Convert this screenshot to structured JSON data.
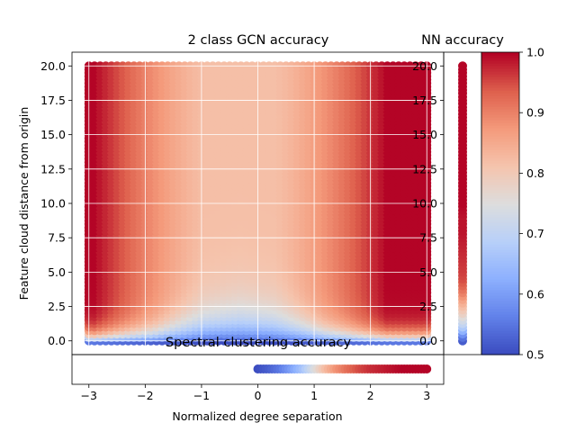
{
  "figure": {
    "main_title": "2 class GCN accuracy",
    "nn_title": "NN accuracy",
    "spectral_title": "Spectral clustering accuracy",
    "xlabel": "Normalized degree separation",
    "ylabel": "Feature cloud distance from origin"
  },
  "chart_data": [
    {
      "type": "scatter",
      "title": "2 class GCN accuracy",
      "xlabel": "Normalized degree separation",
      "ylabel": "Feature cloud distance from origin",
      "xlim": [
        -3.3,
        3.3
      ],
      "ylim": [
        -1.0,
        21.0
      ],
      "x_ticks": [
        -3,
        -2,
        -1,
        0,
        1,
        2,
        3
      ],
      "x_tick_labels": [
        "−3",
        "−2",
        "−1",
        "0",
        "1",
        "2",
        "3"
      ],
      "y_ticks": [
        0.0,
        2.5,
        5.0,
        7.5,
        10.0,
        12.5,
        15.0,
        17.5,
        20.0
      ],
      "y_tick_labels": [
        "0.0",
        "2.5",
        "5.0",
        "7.5",
        "10.0",
        "12.5",
        "15.0",
        "17.5",
        "20.0"
      ],
      "grid": true,
      "x_range": [
        -3,
        3
      ],
      "y_range": [
        0,
        20
      ],
      "accuracy_model": {
        "edge_accuracy": 1.0,
        "center_accuracy_high_y": 0.82,
        "center_position": -0.3,
        "low_y_accuracy": 0.5
      },
      "colormap": "coolwarm"
    },
    {
      "type": "scatter",
      "title": "NN accuracy",
      "y_range": [
        0,
        20
      ],
      "ylim": [
        -1.0,
        21.0
      ],
      "y_ticks": [
        0.0,
        2.5,
        5.0,
        7.5,
        10.0,
        12.5,
        15.0,
        17.5,
        20.0
      ],
      "y_tick_labels": [
        "0.0",
        "2.5",
        "5.0",
        "7.5",
        "10.0",
        "12.5",
        "15.0",
        "17.5",
        "20.0"
      ],
      "y_samples": [
        0.0,
        0.3,
        0.6,
        0.9,
        1.2,
        1.6,
        2.0,
        2.5,
        3.0,
        3.5,
        4.0,
        4.5,
        5.0,
        6.0,
        7.0,
        8.0,
        9.0,
        10.0,
        12.0,
        14.0,
        16.0,
        18.0,
        20.0
      ],
      "accuracy": [
        0.52,
        0.55,
        0.6,
        0.66,
        0.7,
        0.74,
        0.78,
        0.82,
        0.86,
        0.9,
        0.93,
        0.95,
        0.96,
        0.97,
        0.98,
        0.99,
        0.99,
        1.0,
        1.0,
        1.0,
        1.0,
        1.0,
        1.0
      ]
    },
    {
      "type": "scatter",
      "title": "Spectral clustering accuracy",
      "x_range": [
        0,
        3
      ],
      "x_samples": [
        0.0,
        0.2,
        0.4,
        0.6,
        0.8,
        1.0,
        1.2,
        1.4,
        1.6,
        1.8,
        2.0,
        2.2,
        2.4,
        2.6,
        2.8,
        3.0
      ],
      "accuracy": [
        0.5,
        0.52,
        0.55,
        0.6,
        0.66,
        0.74,
        0.82,
        0.88,
        0.92,
        0.95,
        0.97,
        0.98,
        0.99,
        1.0,
        1.0,
        1.0
      ]
    }
  ],
  "colorbar": {
    "colormap": "coolwarm",
    "vmin": 0.5,
    "vmax": 1.0,
    "ticks": [
      0.5,
      0.6,
      0.7,
      0.8,
      0.9,
      1.0
    ],
    "tick_labels": [
      "0.5",
      "0.6",
      "0.7",
      "0.8",
      "0.9",
      "1.0"
    ]
  }
}
